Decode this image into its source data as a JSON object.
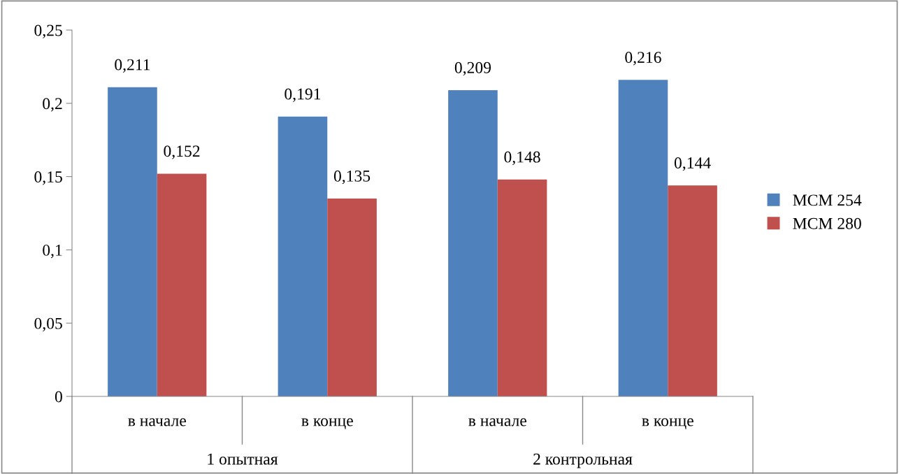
{
  "chart_data": {
    "type": "bar",
    "categories": [
      "в начале",
      "в конце",
      "в начале",
      "в конце"
    ],
    "series": [
      {
        "name": "МСМ 254",
        "color": "#4f81bd",
        "values": [
          0.211,
          0.191,
          0.209,
          0.216
        ],
        "value_labels": [
          "0,211",
          "0,191",
          "0,209",
          "0,216"
        ]
      },
      {
        "name": "МСМ 280",
        "color": "#c0504d",
        "values": [
          0.152,
          0.135,
          0.148,
          0.144
        ],
        "value_labels": [
          "0,152",
          "0,135",
          "0,148",
          "0,144"
        ]
      }
    ],
    "annotations": [
      "1 опытная",
      "2 контрольная"
    ],
    "ylim": [
      0,
      0.25
    ],
    "yticks": [
      0,
      {
        "value": 0.05,
        "label": "0,05"
      },
      {
        "value": 0.1,
        "label": "0,1"
      },
      {
        "value": 0.15,
        "label": "0,15"
      },
      {
        "value": 0.2,
        "label": "0,2"
      },
      {
        "value": 0.25,
        "label": "0,25"
      }
    ],
    "grid": false,
    "legend": "right"
  }
}
